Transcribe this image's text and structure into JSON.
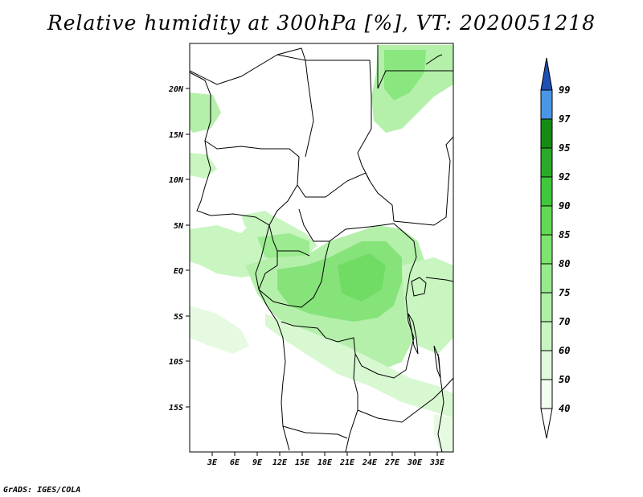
{
  "title": "Relative humidity at 300hPa [%], VT: 2020051218",
  "footer": "GrADS: IGES/COLA",
  "map": {
    "lon_range": [
      0,
      36
    ],
    "lat_range": [
      -20,
      25
    ],
    "lon_ticks": [
      "3E",
      "6E",
      "9E",
      "12E",
      "15E",
      "18E",
      "21E",
      "24E",
      "27E",
      "30E",
      "33E"
    ],
    "lat_ticks": [
      "20N",
      "15N",
      "10N",
      "5N",
      "EQ",
      "5S",
      "10S",
      "15S"
    ]
  },
  "colorbar": {
    "levels": [
      "40",
      "50",
      "60",
      "70",
      "75",
      "80",
      "85",
      "90",
      "92",
      "95",
      "97",
      "99"
    ],
    "colors": [
      "#f0fff0",
      "#e0fadc",
      "#c8f5c0",
      "#aef0a4",
      "#96eb8a",
      "#7de46f",
      "#60da55",
      "#40c83c",
      "#2aaa28",
      "#148c14",
      "#4a96e6",
      "#2a6ed2",
      "#1e4fb4"
    ]
  }
}
